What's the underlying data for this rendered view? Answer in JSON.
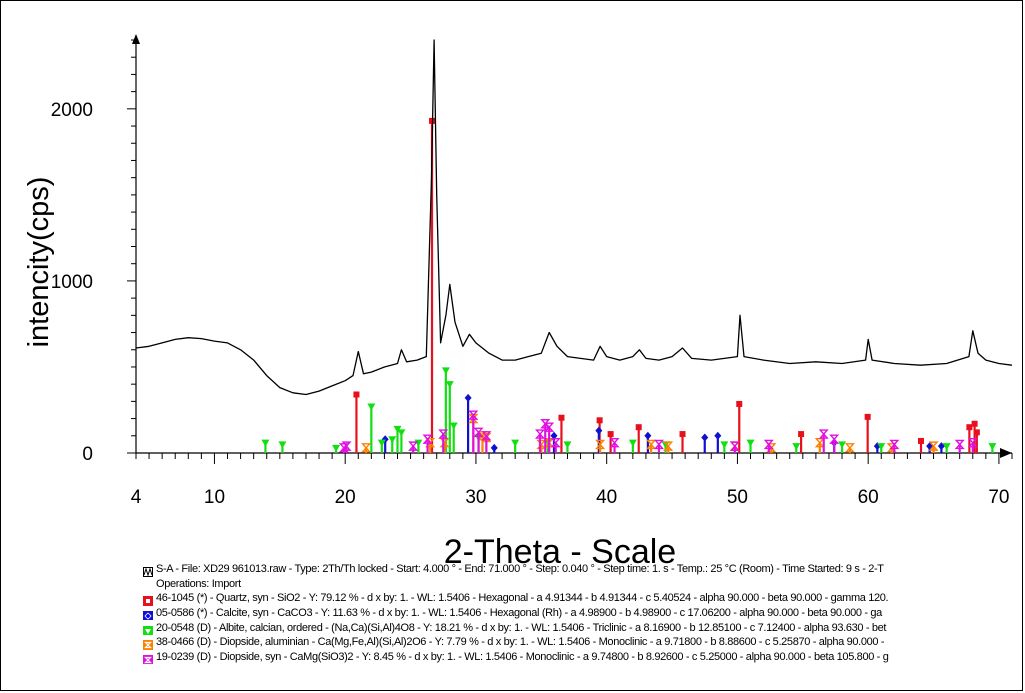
{
  "chart_data": {
    "type": "line",
    "ylabel": "intencity(cps)",
    "xlabel": "2-Theta - Scale",
    "xlim": [
      4,
      71
    ],
    "ylim": [
      0,
      2400
    ],
    "x_ticks": [
      4,
      10,
      20,
      30,
      40,
      50,
      60,
      70
    ],
    "y_ticks": [
      0,
      1000,
      2000
    ],
    "series": [
      {
        "name": "S-A",
        "color": "#000000",
        "points": [
          [
            4,
            610
          ],
          [
            5,
            620
          ],
          [
            6,
            640
          ],
          [
            7,
            660
          ],
          [
            8,
            670
          ],
          [
            9,
            665
          ],
          [
            10,
            650
          ],
          [
            11,
            640
          ],
          [
            12,
            600
          ],
          [
            13,
            540
          ],
          [
            14,
            450
          ],
          [
            15,
            380
          ],
          [
            16,
            350
          ],
          [
            17,
            340
          ],
          [
            18,
            360
          ],
          [
            19,
            390
          ],
          [
            20,
            420
          ],
          [
            20.6,
            450
          ],
          [
            21,
            590
          ],
          [
            21.4,
            460
          ],
          [
            22,
            470
          ],
          [
            23,
            500
          ],
          [
            24,
            520
          ],
          [
            24.3,
            600
          ],
          [
            24.7,
            530
          ],
          [
            25.5,
            540
          ],
          [
            26.2,
            560
          ],
          [
            26.6,
            1600
          ],
          [
            26.8,
            2400
          ],
          [
            27.0,
            1500
          ],
          [
            27.3,
            640
          ],
          [
            27.7,
            800
          ],
          [
            28.0,
            980
          ],
          [
            28.4,
            760
          ],
          [
            29,
            620
          ],
          [
            29.5,
            690
          ],
          [
            30,
            640
          ],
          [
            31,
            580
          ],
          [
            32,
            540
          ],
          [
            33,
            540
          ],
          [
            34,
            560
          ],
          [
            35,
            580
          ],
          [
            35.6,
            700
          ],
          [
            36.2,
            620
          ],
          [
            37,
            560
          ],
          [
            38,
            550
          ],
          [
            39,
            540
          ],
          [
            39.5,
            620
          ],
          [
            40,
            560
          ],
          [
            41,
            540
          ],
          [
            42,
            560
          ],
          [
            42.5,
            600
          ],
          [
            43,
            550
          ],
          [
            44,
            540
          ],
          [
            45,
            560
          ],
          [
            45.8,
            610
          ],
          [
            46.5,
            550
          ],
          [
            48,
            540
          ],
          [
            50.0,
            560
          ],
          [
            50.2,
            800
          ],
          [
            50.5,
            560
          ],
          [
            52,
            540
          ],
          [
            54,
            520
          ],
          [
            56,
            530
          ],
          [
            58,
            520
          ],
          [
            59.8,
            540
          ],
          [
            60.0,
            660
          ],
          [
            60.3,
            540
          ],
          [
            62,
            520
          ],
          [
            64,
            510
          ],
          [
            66,
            520
          ],
          [
            67.7,
            560
          ],
          [
            68.0,
            710
          ],
          [
            68.4,
            580
          ],
          [
            69,
            540
          ],
          [
            70,
            520
          ],
          [
            71,
            510
          ]
        ]
      }
    ],
    "reference_patterns": [
      {
        "id": "46-1045",
        "color": "#e8101c",
        "marker": "square",
        "sticks": [
          [
            20.86,
            340
          ],
          [
            26.64,
            1930
          ],
          [
            36.54,
            205
          ],
          [
            39.46,
            190
          ],
          [
            40.3,
            110
          ],
          [
            42.45,
            150
          ],
          [
            45.8,
            110
          ],
          [
            50.14,
            285
          ],
          [
            54.87,
            110
          ],
          [
            59.96,
            210
          ],
          [
            64.04,
            70
          ],
          [
            67.74,
            150
          ],
          [
            68.14,
            170
          ],
          [
            68.31,
            120
          ]
        ]
      },
      {
        "id": "05-0586",
        "color": "#1010d0",
        "marker": "diamond",
        "sticks": [
          [
            23.06,
            80
          ],
          [
            29.4,
            320
          ],
          [
            31.4,
            30
          ],
          [
            35.97,
            100
          ],
          [
            39.4,
            130
          ],
          [
            43.15,
            100
          ],
          [
            47.5,
            90
          ],
          [
            48.5,
            100
          ],
          [
            57.4,
            60
          ],
          [
            60.7,
            40
          ],
          [
            64.7,
            40
          ],
          [
            65.6,
            40
          ]
        ]
      },
      {
        "id": "20-0548",
        "color": "#10e010",
        "marker": "triangle",
        "sticks": [
          [
            13.9,
            60
          ],
          [
            15.2,
            50
          ],
          [
            19.3,
            30
          ],
          [
            22.0,
            270
          ],
          [
            22.8,
            60
          ],
          [
            23.6,
            80
          ],
          [
            24.0,
            140
          ],
          [
            24.3,
            120
          ],
          [
            25.6,
            60
          ],
          [
            27.7,
            480
          ],
          [
            28.0,
            400
          ],
          [
            28.3,
            160
          ],
          [
            30.2,
            90
          ],
          [
            33.0,
            60
          ],
          [
            35.5,
            70
          ],
          [
            37.0,
            50
          ],
          [
            42.0,
            60
          ],
          [
            44.5,
            50
          ],
          [
            49.0,
            50
          ],
          [
            51.0,
            60
          ],
          [
            54.5,
            40
          ],
          [
            58.0,
            50
          ],
          [
            61.0,
            40
          ],
          [
            66.0,
            40
          ],
          [
            69.5,
            40
          ]
        ]
      },
      {
        "id": "38-0466",
        "color": "#ff8000",
        "marker": "hourglass",
        "sticks": [
          [
            21.6,
            30
          ],
          [
            26.5,
            60
          ],
          [
            27.6,
            60
          ],
          [
            29.8,
            200
          ],
          [
            30.5,
            100
          ],
          [
            30.8,
            90
          ],
          [
            35.0,
            50
          ],
          [
            35.6,
            60
          ],
          [
            39.5,
            50
          ],
          [
            43.4,
            50
          ],
          [
            44.7,
            40
          ],
          [
            49.8,
            40
          ],
          [
            52.6,
            30
          ],
          [
            56.3,
            60
          ],
          [
            58.6,
            30
          ],
          [
            61.8,
            30
          ],
          [
            65.0,
            40
          ]
        ]
      },
      {
        "id": "19-0239",
        "color": "#e010e0",
        "marker": "hourglass",
        "sticks": [
          [
            19.9,
            30
          ],
          [
            20.1,
            40
          ],
          [
            25.2,
            40
          ],
          [
            26.3,
            80
          ],
          [
            27.5,
            110
          ],
          [
            29.8,
            220
          ],
          [
            30.2,
            120
          ],
          [
            30.8,
            100
          ],
          [
            34.9,
            110
          ],
          [
            35.3,
            170
          ],
          [
            35.6,
            150
          ],
          [
            36.1,
            60
          ],
          [
            40.6,
            60
          ],
          [
            44.0,
            50
          ],
          [
            49.8,
            40
          ],
          [
            52.4,
            50
          ],
          [
            56.6,
            110
          ],
          [
            57.4,
            80
          ],
          [
            62.0,
            50
          ],
          [
            67.0,
            50
          ],
          [
            68.0,
            60
          ]
        ]
      }
    ]
  },
  "legend": [
    {
      "marker": "pattern",
      "color": "#000000",
      "text": "S-A - File: XD29 961013.raw - Type: 2Th/Th locked - Start: 4.000 ° - End: 71.000 ° - Step: 0.040 ° - Step time: 1. s - Temp.: 25 °C (Room) - Time Started: 9 s - 2-T"
    },
    {
      "marker": "none",
      "color": "#000000",
      "text": "Operations: Import"
    },
    {
      "marker": "square",
      "color": "#e8101c",
      "text": "46-1045 (*) - Quartz, syn - SiO2 - Y: 79.12 % - d x by: 1. - WL: 1.5406 - Hexagonal - a 4.91344 - b 4.91344 - c 5.40524 - alpha 90.000 - beta 90.000 - gamma 120."
    },
    {
      "marker": "diamond",
      "color": "#1010d0",
      "text": "05-0586 (*) - Calcite, syn - CaCO3 - Y: 11.63 % - d x by: 1. - WL: 1.5406 - Hexagonal (Rh) - a 4.98900 - b 4.98900 - c 17.06200 - alpha 90.000 - beta 90.000 - ga"
    },
    {
      "marker": "triangle",
      "color": "#10e010",
      "text": "20-0548 (D) - Albite, calcian, ordered - (Na,Ca)(Si,Al)4O8 - Y: 18.21 % - d x by: 1. - WL: 1.5406 - Triclinic - a 8.16900 - b 12.85100 - c 7.12400 - alpha 93.630 - bet"
    },
    {
      "marker": "hourglass",
      "color": "#ff8000",
      "text": "38-0466 (D) - Diopside, aluminian - Ca(Mg,Fe,Al)(Si,Al)2O6 - Y: 7.79 % - d x by: 1. - WL: 1.5406 - Monoclinic - a 9.71800 - b 8.88600 - c 5.25870 - alpha 90.000 -"
    },
    {
      "marker": "hourglass",
      "color": "#e010e0",
      "text": "19-0239 (D) - Diopside, syn - CaMg(SiO3)2 - Y: 8.45 % - d x by: 1. - WL: 1.5406 - Monoclinic - a 9.74800 - b 8.92600 - c 5.25000 - alpha 90.000 - beta 105.800 - g"
    }
  ]
}
